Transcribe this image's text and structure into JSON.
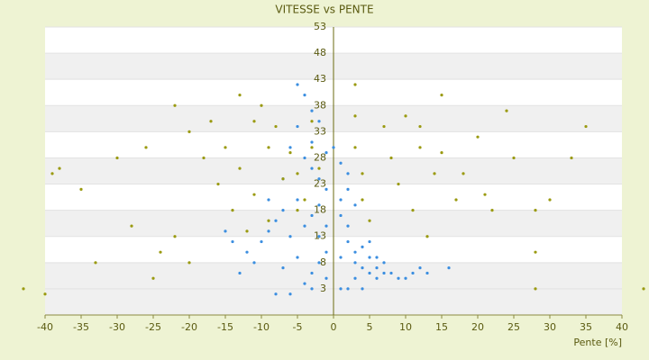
{
  "chart_data": {
    "type": "scatter",
    "title": "VITESSE vs PENTE",
    "x_label": "Pente [%]",
    "xlim": [
      -40,
      40
    ],
    "xticks": [
      -40,
      -35,
      -30,
      -25,
      -20,
      -15,
      -10,
      -5,
      0,
      5,
      10,
      15,
      20,
      25,
      30,
      35,
      40
    ],
    "ylim": [
      -2,
      53
    ],
    "yticks": [
      3,
      8,
      13,
      18,
      23,
      28,
      33,
      38,
      43,
      48,
      53
    ],
    "bands": true,
    "series": [
      {
        "color": "#3b8ee0",
        "x": [
          -5,
          -4,
          -3,
          -2,
          -6,
          -4,
          -3,
          -2,
          -1,
          -5,
          -7,
          -8,
          -9,
          -10,
          -6,
          -4,
          -3,
          -2,
          -1,
          -1,
          -2,
          -3,
          -4,
          -8,
          -6,
          -3,
          -1,
          -11,
          -12,
          -14,
          -9,
          -7,
          -5,
          -3,
          -1,
          -2,
          -5,
          -7,
          1,
          1,
          2,
          2,
          3,
          3,
          4,
          4,
          5,
          5,
          6,
          6,
          7,
          8,
          9,
          10,
          11,
          12,
          3,
          4,
          2,
          1,
          2,
          3,
          2,
          1,
          0,
          1,
          5,
          6,
          7,
          13,
          16,
          -15,
          -13
        ],
        "values": [
          42,
          40,
          37,
          35,
          30,
          28,
          26,
          24,
          22,
          20,
          18,
          16,
          14,
          12,
          13,
          15,
          17,
          19,
          15,
          10,
          8,
          6,
          4,
          2,
          2,
          3,
          5,
          8,
          10,
          12,
          20,
          24,
          34,
          31,
          29,
          13,
          9,
          7,
          20,
          17,
          15,
          12,
          10,
          8,
          11,
          7,
          9,
          6,
          7,
          5,
          6,
          6,
          5,
          5,
          6,
          7,
          5,
          3,
          3,
          9,
          22,
          19,
          25,
          27,
          30,
          3,
          12,
          9,
          8,
          6,
          7,
          14,
          6
        ]
      },
      {
        "color": "#9a9a10",
        "x": [
          -22,
          -20,
          -18,
          -16,
          -14,
          -12,
          -17,
          -15,
          -13,
          -11,
          -9,
          -13,
          -11,
          -9,
          -7,
          -5,
          -10,
          -8,
          -6,
          -5,
          -4,
          -3,
          -3,
          -2,
          3,
          3,
          3,
          4,
          4,
          5,
          7,
          8,
          9,
          11,
          13,
          10,
          12,
          14,
          17,
          12,
          15,
          18,
          21,
          15,
          20,
          25,
          28,
          30,
          33,
          35,
          -26,
          -30,
          -33,
          -38,
          -40,
          -35,
          -43,
          43,
          28,
          28,
          -25,
          -24,
          -20,
          -28,
          22,
          24,
          -39,
          -22
        ],
        "values": [
          38,
          33,
          28,
          23,
          18,
          14,
          35,
          30,
          26,
          21,
          16,
          40,
          35,
          30,
          24,
          18,
          38,
          34,
          29,
          25,
          20,
          35,
          30,
          26,
          42,
          36,
          30,
          25,
          20,
          16,
          34,
          28,
          23,
          18,
          13,
          36,
          30,
          25,
          20,
          34,
          29,
          25,
          21,
          40,
          32,
          28,
          18,
          20,
          28,
          34,
          30,
          28,
          8,
          26,
          2,
          22,
          3,
          3,
          3,
          10,
          5,
          10,
          8,
          15,
          18,
          37,
          25,
          13
        ]
      }
    ]
  }
}
